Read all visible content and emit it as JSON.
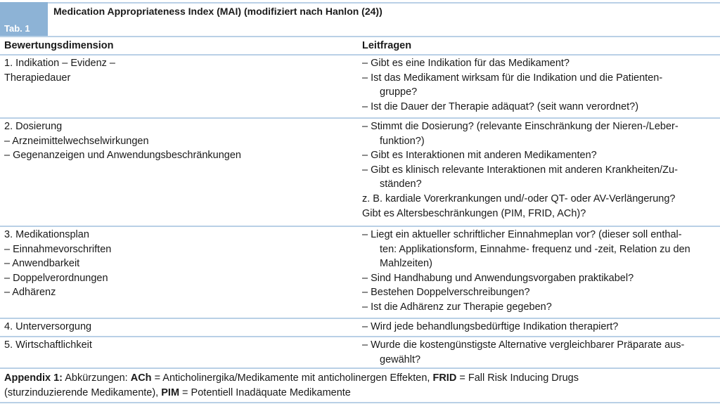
{
  "table": {
    "label": "Tab. 1",
    "title": "Medication Appropriateness Index (MAI) (modifiziert nach Hanlon (24))",
    "headers": [
      "Bewertungsdimension",
      "Leitfragen"
    ],
    "rows": [
      {
        "dimension": [
          "1. Indikation – Evidenz –",
          "Therapiedauer"
        ],
        "questions": [
          "– Gibt es eine Indikation für das Medikament?",
          "– Ist das Medikament wirksam für die Indikation und die Patienten-",
          "gruppe?",
          "– Ist die Dauer der Therapie adäquat? (seit wann verordnet?)"
        ]
      },
      {
        "dimension": [
          "2. Dosierung",
          "– Arzneimittelwechselwirkungen",
          "– Gegenanzeigen und Anwendungsbeschränkungen"
        ],
        "questions": [
          "– Stimmt die Dosierung? (relevante Einschränkung der Nieren-/Leber-",
          "funktion?)",
          "– Gibt es Interaktionen mit anderen Medikamenten?",
          "– Gibt es klinisch relevante Interaktionen mit anderen Krankheiten/Zu-",
          "ständen?",
          "z. B. kardiale Vorerkrankungen und/-oder QT- oder AV-Verlängerung?",
          "Gibt es Altersbeschränkungen (PIM, FRID, ACh)?"
        ]
      },
      {
        "dimension": [
          "3. Medikationsplan",
          "– Einnahmevorschriften",
          "– Anwendbarkeit",
          "– Doppelverordnungen",
          "– Adhärenz"
        ],
        "questions": [
          "– Liegt ein aktueller schriftlicher Einnahmeplan vor? (dieser soll enthal-",
          "ten: Applikationsform, Einnahme- frequenz und -zeit, Relation zu den",
          "Mahlzeiten)",
          "– Sind Handhabung und Anwendungsvorgaben praktikabel?",
          "– Bestehen Doppelverschreibungen?",
          "– Ist die Adhärenz zur Therapie gegeben?"
        ]
      },
      {
        "dimension": [
          "4. Unterversorgung"
        ],
        "questions": [
          "– Wird jede behandlungsbedürftige Indikation therapiert?"
        ]
      },
      {
        "dimension": [
          "5. Wirtschaftlichkeit"
        ],
        "questions": [
          "– Wurde die kostengünstigste Alternative vergleichbarer Präparate aus-",
          "gewählt?"
        ]
      }
    ],
    "appendix": {
      "label": "Appendix 1:",
      "intro": " Abkürzungen: ",
      "ach": "ACh",
      "ach_def": " = Anticholinergika/Medikamente mit anticholinergen Effekten, ",
      "frid": "FRID",
      "frid_def": " = Fall Risk Inducing Drugs",
      "line2": "(sturzinduzierende Medikamente), ",
      "pim": "PIM",
      "pim_def": " = Potentiell Inadäquate Medikamente"
    }
  },
  "colors": {
    "accent": "#8db3d6",
    "rule": "#b9d0e6"
  }
}
